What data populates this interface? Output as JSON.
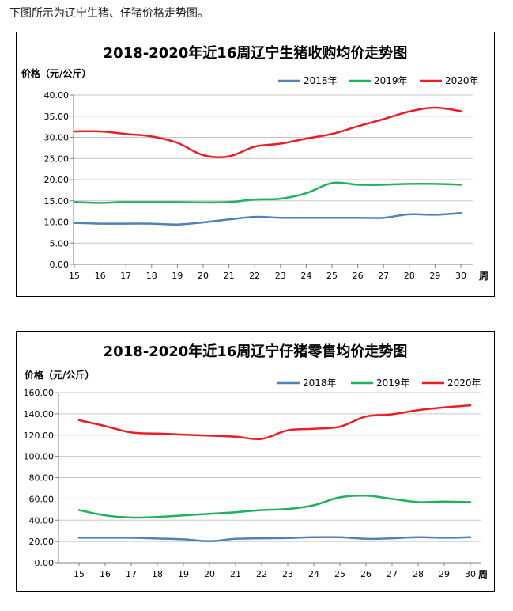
{
  "intro_text": "下图所示为辽宁生猪、仔猪价格走势图。",
  "chart_data": [
    {
      "type": "line",
      "title": "2018-2020年近16周辽宁生猪收购均价走势图",
      "ylabel": "价格（元/公斤）",
      "xlabel": "周",
      "ylim": [
        0,
        40
      ],
      "ytick_step": 5,
      "ytick_labels": [
        "0.00",
        "5.00",
        "10.00",
        "15.00",
        "20.00",
        "25.00",
        "30.00",
        "35.00",
        "40.00"
      ],
      "categories": [
        "15",
        "16",
        "17",
        "18",
        "19",
        "20",
        "21",
        "22",
        "23",
        "24",
        "25",
        "26",
        "27",
        "28",
        "29",
        "30"
      ],
      "grid": true,
      "legend_position": "top-right",
      "series": [
        {
          "name": "2018年",
          "color": "#4f81bd",
          "values": [
            9.8,
            9.6,
            9.6,
            9.6,
            9.4,
            9.9,
            10.6,
            11.2,
            11.0,
            11.0,
            11.0,
            11.0,
            11.0,
            11.8,
            11.7,
            12.1
          ]
        },
        {
          "name": "2019年",
          "color": "#1fb25a",
          "values": [
            14.7,
            14.5,
            14.7,
            14.7,
            14.7,
            14.6,
            14.7,
            15.3,
            15.5,
            16.8,
            19.2,
            18.8,
            18.8,
            19.0,
            19.0,
            18.8
          ]
        },
        {
          "name": "2020年",
          "color": "#ee1c25",
          "values": [
            31.4,
            31.4,
            30.8,
            30.2,
            28.7,
            25.8,
            25.5,
            27.8,
            28.5,
            29.7,
            30.8,
            32.6,
            34.3,
            36.1,
            37.0,
            36.2
          ]
        }
      ]
    },
    {
      "type": "line",
      "title": "2018-2020年近16周辽宁仔猪零售均价走势图",
      "ylabel": "价格（元/公斤）",
      "xlabel": "周",
      "ylim": [
        0,
        160
      ],
      "ytick_step": 20,
      "ytick_labels": [
        "0.00",
        "20.00",
        "40.00",
        "60.00",
        "80.00",
        "100.00",
        "120.00",
        "140.00",
        "160.00"
      ],
      "categories": [
        "15",
        "16",
        "17",
        "18",
        "19",
        "20",
        "21",
        "22",
        "23",
        "24",
        "25",
        "26",
        "27",
        "28",
        "29",
        "30"
      ],
      "grid": true,
      "legend_position": "top-right",
      "series": [
        {
          "name": "2018年",
          "color": "#4f81bd",
          "values": [
            23.5,
            23.5,
            23.5,
            22.8,
            22.0,
            20.3,
            22.5,
            23.0,
            23.2,
            24.0,
            24.0,
            22.5,
            23.0,
            24.0,
            23.5,
            24.0
          ]
        },
        {
          "name": "2019年",
          "color": "#1fb25a",
          "values": [
            49.5,
            44.5,
            42.5,
            43.0,
            44.5,
            46.0,
            47.5,
            49.5,
            50.5,
            54.0,
            61.5,
            63.0,
            60.0,
            57.0,
            57.5,
            57.0
          ]
        },
        {
          "name": "2020年",
          "color": "#ee1c25",
          "values": [
            134.0,
            128.5,
            122.5,
            121.5,
            120.5,
            119.5,
            118.5,
            116.5,
            124.5,
            126.0,
            128.0,
            137.5,
            139.5,
            143.5,
            146.0,
            148.0
          ]
        }
      ]
    }
  ]
}
